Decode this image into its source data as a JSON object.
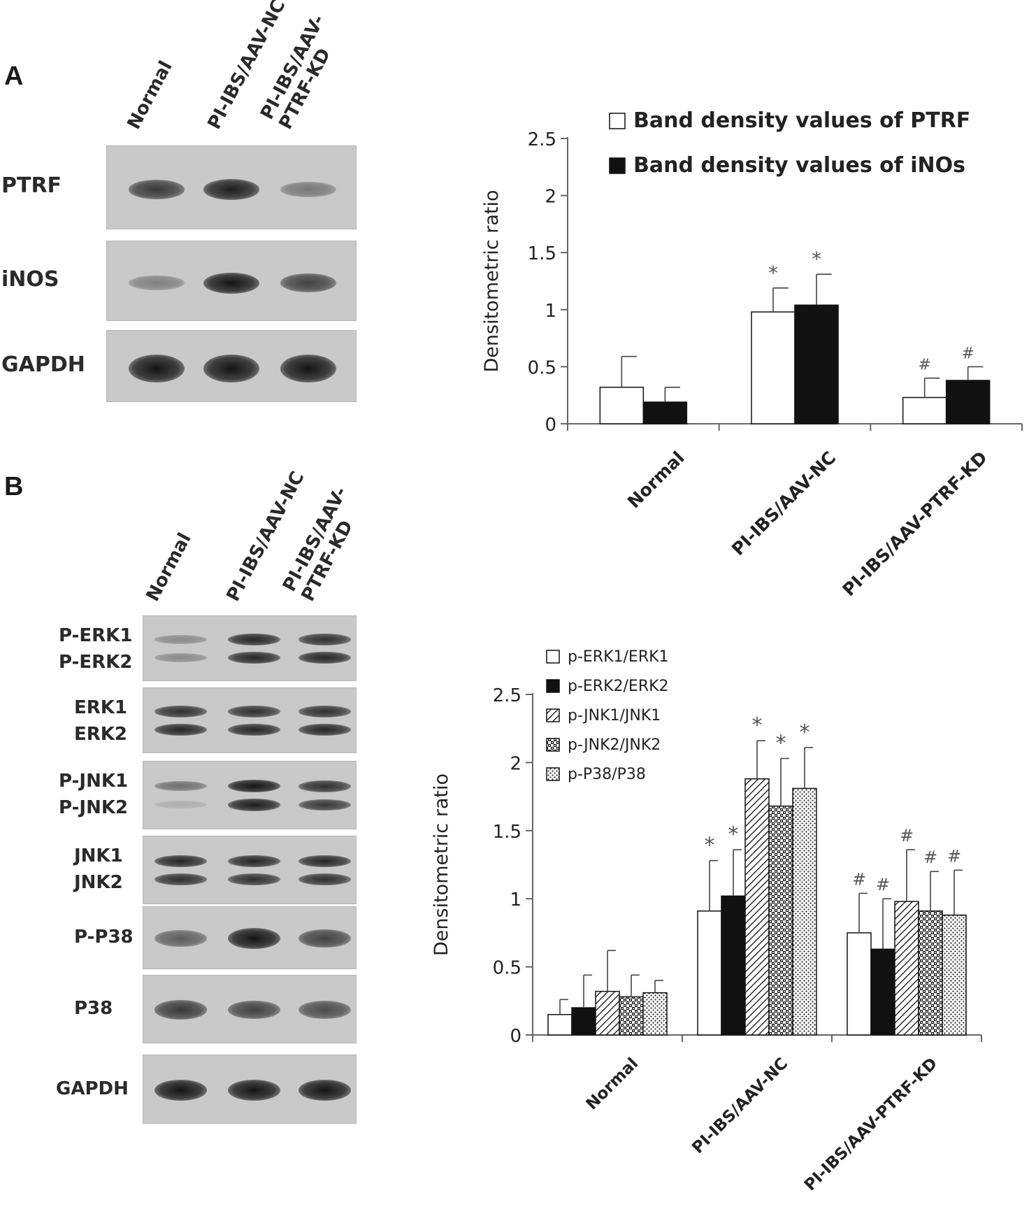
{
  "panelA": {
    "letter": "A",
    "lanes": [
      {
        "lines": [
          "Normal"
        ]
      },
      {
        "lines": [
          "PI-IBS/AAV-NC"
        ]
      },
      {
        "lines": [
          "PI-IBS/AAV-",
          "PTRF-KD"
        ]
      }
    ],
    "blots": [
      {
        "label": "PTRF",
        "intensity": [
          0.8,
          0.95,
          0.45
        ]
      },
      {
        "label": "iNOS",
        "intensity": [
          0.4,
          1.0,
          0.75
        ]
      },
      {
        "label": "GAPDH",
        "intensity": [
          1.0,
          1.0,
          1.0
        ]
      }
    ]
  },
  "panelB": {
    "letter": "B",
    "lanes": [
      {
        "lines": [
          "Normal"
        ]
      },
      {
        "lines": [
          "PI-IBS/AAV-NC"
        ]
      },
      {
        "lines": [
          "PI-IBS/AAV-",
          "PTRF-KD"
        ]
      }
    ],
    "blots": [
      {
        "labels": [
          "P-ERK1",
          "P-ERK2"
        ],
        "intensity": [
          [
            0.35,
            0.9,
            0.85
          ],
          [
            0.35,
            0.9,
            0.9
          ]
        ]
      },
      {
        "labels": [
          "ERK1",
          "ERK2"
        ],
        "intensity": [
          [
            0.85,
            0.85,
            0.85
          ],
          [
            0.9,
            0.9,
            0.9
          ]
        ]
      },
      {
        "labels": [
          "P-JNK1",
          "P-JNK2"
        ],
        "intensity": [
          [
            0.5,
            1.0,
            0.85
          ],
          [
            0.15,
            0.95,
            0.8
          ]
        ]
      },
      {
        "labels": [
          "JNK1",
          "JNK2"
        ],
        "intensity": [
          [
            0.9,
            0.9,
            0.9
          ],
          [
            0.85,
            0.85,
            0.85
          ]
        ]
      },
      {
        "labels": [
          "P-P38"
        ],
        "intensity": [
          [
            0.6,
            1.0,
            0.75
          ]
        ]
      },
      {
        "labels": [
          "P38"
        ],
        "intensity": [
          [
            0.8,
            0.75,
            0.7
          ]
        ]
      },
      {
        "labels": [
          "GAPDH"
        ],
        "intensity": [
          [
            1.0,
            1.0,
            1.0
          ]
        ]
      }
    ]
  },
  "chart_data": [
    {
      "type": "bar",
      "ylabel": "Densitometric ratio",
      "ylim": [
        0,
        2.5
      ],
      "yticks": [
        "0",
        "0.5",
        "1",
        "1.5",
        "2",
        "2.5"
      ],
      "categories": [
        "Normal",
        "PI-IBS/AAV-NC",
        "PI-IBS/AAV-PTRF-KD"
      ],
      "legend_position": "top-right",
      "series": [
        {
          "name": "Band density values of PTRF",
          "fill": "white",
          "values": [
            0.32,
            0.98,
            0.23
          ],
          "errors": [
            0.27,
            0.21,
            0.17
          ],
          "annotations": [
            "",
            "*",
            "#"
          ]
        },
        {
          "name": "Band density values of iNOs",
          "fill": "black",
          "values": [
            0.19,
            1.04,
            0.38
          ],
          "errors": [
            0.13,
            0.27,
            0.12
          ],
          "annotations": [
            "",
            "*",
            "#"
          ]
        }
      ]
    },
    {
      "type": "bar",
      "ylabel": "Densitometric ratio",
      "ylim": [
        0,
        2.5
      ],
      "yticks": [
        "0",
        "0.5",
        "1",
        "1.5",
        "2",
        "2.5"
      ],
      "categories": [
        "Normal",
        "PI-IBS/AAV-NC",
        "PI-IBS/AAV-PTRF-KD"
      ],
      "legend_position": "top-left",
      "series": [
        {
          "name": "p-ERK1/ERK1",
          "fill": "white",
          "values": [
            0.15,
            0.91,
            0.75
          ],
          "errors": [
            0.11,
            0.37,
            0.29
          ],
          "annotations": [
            "",
            "*",
            "#"
          ]
        },
        {
          "name": "p-ERK2/ERK2",
          "fill": "black",
          "values": [
            0.2,
            1.02,
            0.63
          ],
          "errors": [
            0.24,
            0.34,
            0.37
          ],
          "annotations": [
            "",
            "*",
            "#"
          ]
        },
        {
          "name": "p-JNK1/JNK1",
          "fill": "diagonal",
          "values": [
            0.32,
            1.88,
            0.98
          ],
          "errors": [
            0.3,
            0.28,
            0.38
          ],
          "annotations": [
            "",
            "*",
            "#"
          ]
        },
        {
          "name": "p-JNK2/JNK2",
          "fill": "check",
          "values": [
            0.28,
            1.68,
            0.91
          ],
          "errors": [
            0.16,
            0.35,
            0.29
          ],
          "annotations": [
            "",
            "*",
            "#"
          ]
        },
        {
          "name": "p-P38/P38",
          "fill": "dots",
          "values": [
            0.31,
            1.81,
            0.88
          ],
          "errors": [
            0.09,
            0.3,
            0.33
          ],
          "annotations": [
            "",
            "*",
            "#"
          ]
        }
      ]
    }
  ]
}
